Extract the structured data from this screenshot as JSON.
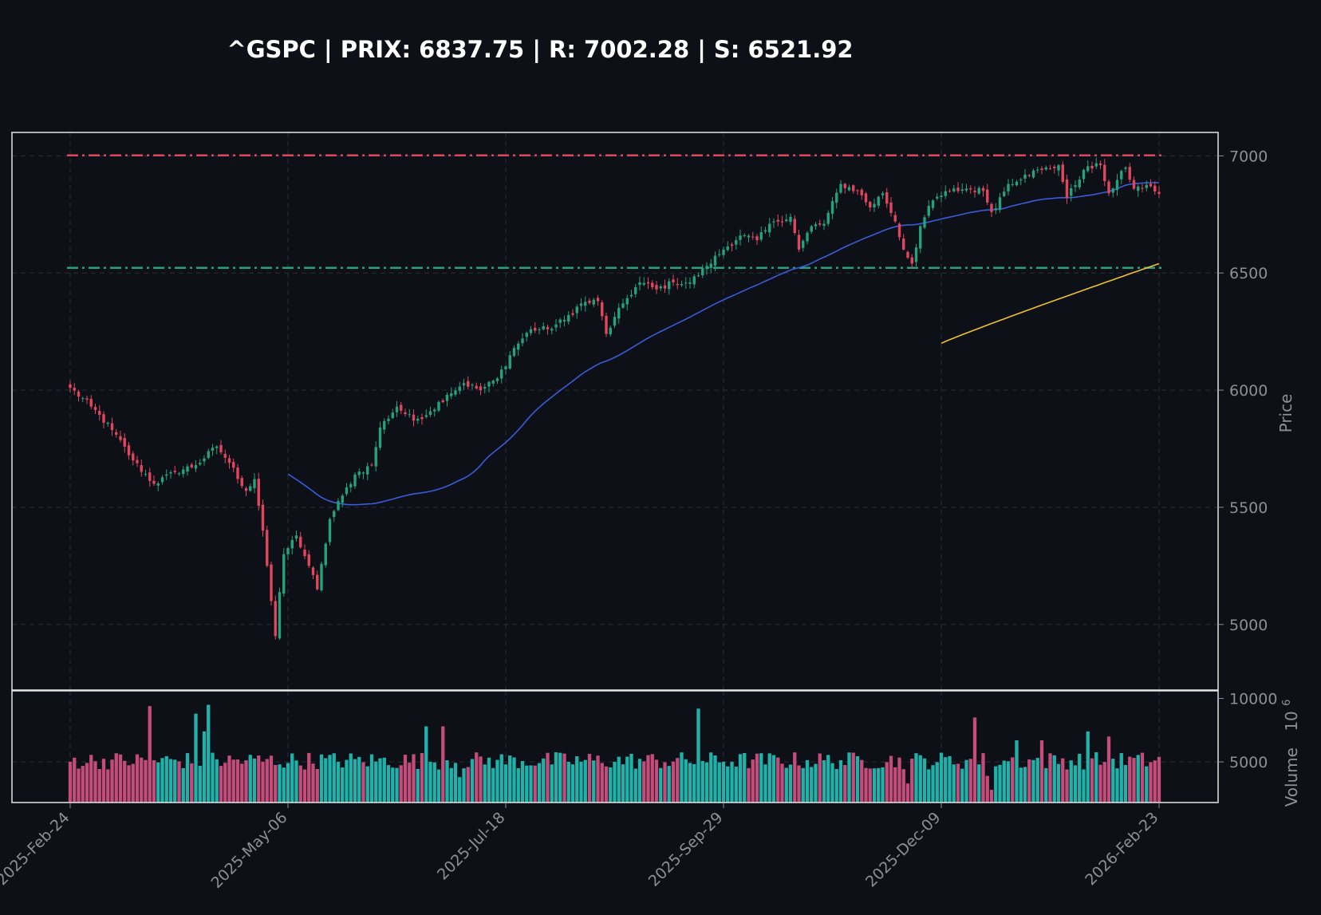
{
  "chart_data": {
    "type": "candlestick",
    "title": "^GSPC | PRIX: 6837.75 | R: 7002.28 | S: 6521.92",
    "ylabel": "Price",
    "volume_label": "Volume",
    "volume_exponent_base": "10",
    "volume_exponent": "6",
    "x_tick_labels": [
      "2025-Feb-24",
      "2025-May-06",
      "2025-Jul-18",
      "2025-Sep-29",
      "2025-Dec-09",
      "2026-Feb-23"
    ],
    "y_ticks": [
      5000,
      5500,
      6000,
      6500,
      7000
    ],
    "ylim": [
      4720,
      7100
    ],
    "volume_ticks": [
      5000,
      10000
    ],
    "volume_ylim": [
      1800,
      10600
    ],
    "price": 6837.75,
    "resistance": 7002.28,
    "support": 6521.92,
    "grid": true,
    "colors": {
      "background": "#0d1017",
      "up": "#26a17a",
      "down": "#e0465e",
      "resistance": "#e0465e",
      "support": "#26a17a",
      "ma_fast": "#3b5bdb",
      "ma_slow": "#f2c12e",
      "volume_up": "#20b2aa",
      "volume_down": "#c44c7a",
      "frame": "#e6e6e6",
      "grid": "#2a2e38",
      "text": "#8b8f99"
    },
    "anchors": [
      {
        "i": 0,
        "c": 6010
      },
      {
        "i": 5,
        "c": 5930
      },
      {
        "i": 10,
        "c": 5830
      },
      {
        "i": 15,
        "c": 5700
      },
      {
        "i": 20,
        "c": 5600
      },
      {
        "i": 25,
        "c": 5650
      },
      {
        "i": 30,
        "c": 5680
      },
      {
        "i": 35,
        "c": 5760
      },
      {
        "i": 38,
        "c": 5690
      },
      {
        "i": 42,
        "c": 5570
      },
      {
        "i": 44,
        "c": 5620
      },
      {
        "i": 46,
        "c": 5400
      },
      {
        "i": 48,
        "c": 5100
      },
      {
        "i": 49,
        "c": 4950
      },
      {
        "i": 51,
        "c": 5300
      },
      {
        "i": 54,
        "c": 5380
      },
      {
        "i": 57,
        "c": 5250
      },
      {
        "i": 59,
        "c": 5150
      },
      {
        "i": 62,
        "c": 5450
      },
      {
        "i": 65,
        "c": 5550
      },
      {
        "i": 68,
        "c": 5640
      },
      {
        "i": 72,
        "c": 5680
      },
      {
        "i": 74,
        "c": 5840
      },
      {
        "i": 78,
        "c": 5930
      },
      {
        "i": 82,
        "c": 5870
      },
      {
        "i": 86,
        "c": 5910
      },
      {
        "i": 90,
        "c": 5980
      },
      {
        "i": 94,
        "c": 6030
      },
      {
        "i": 98,
        "c": 6000
      },
      {
        "i": 102,
        "c": 6050
      },
      {
        "i": 106,
        "c": 6180
      },
      {
        "i": 110,
        "c": 6260
      },
      {
        "i": 114,
        "c": 6260
      },
      {
        "i": 118,
        "c": 6300
      },
      {
        "i": 122,
        "c": 6370
      },
      {
        "i": 126,
        "c": 6380
      },
      {
        "i": 128,
        "c": 6240
      },
      {
        "i": 132,
        "c": 6370
      },
      {
        "i": 136,
        "c": 6460
      },
      {
        "i": 140,
        "c": 6430
      },
      {
        "i": 144,
        "c": 6460
      },
      {
        "i": 148,
        "c": 6460
      },
      {
        "i": 152,
        "c": 6530
      },
      {
        "i": 156,
        "c": 6600
      },
      {
        "i": 160,
        "c": 6660
      },
      {
        "i": 164,
        "c": 6640
      },
      {
        "i": 168,
        "c": 6720
      },
      {
        "i": 172,
        "c": 6740
      },
      {
        "i": 174,
        "c": 6600
      },
      {
        "i": 177,
        "c": 6700
      },
      {
        "i": 180,
        "c": 6710
      },
      {
        "i": 184,
        "c": 6880
      },
      {
        "i": 188,
        "c": 6850
      },
      {
        "i": 191,
        "c": 6780
      },
      {
        "i": 194,
        "c": 6840
      },
      {
        "i": 197,
        "c": 6720
      },
      {
        "i": 199,
        "c": 6600
      },
      {
        "i": 201,
        "c": 6540
      },
      {
        "i": 203,
        "c": 6700
      },
      {
        "i": 206,
        "c": 6810
      },
      {
        "i": 210,
        "c": 6850
      },
      {
        "i": 214,
        "c": 6860
      },
      {
        "i": 218,
        "c": 6850
      },
      {
        "i": 220,
        "c": 6760
      },
      {
        "i": 224,
        "c": 6880
      },
      {
        "i": 228,
        "c": 6920
      },
      {
        "i": 232,
        "c": 6940
      },
      {
        "i": 236,
        "c": 6960
      },
      {
        "i": 238,
        "c": 6820
      },
      {
        "i": 242,
        "c": 6940
      },
      {
        "i": 246,
        "c": 6960
      },
      {
        "i": 248,
        "c": 6840
      },
      {
        "i": 252,
        "c": 6950
      },
      {
        "i": 254,
        "c": 6860
      },
      {
        "i": 258,
        "c": 6870
      },
      {
        "i": 260,
        "c": 6837.75
      }
    ],
    "volume_spikes": [
      {
        "i": 19,
        "v": 9400
      },
      {
        "i": 30,
        "v": 8800
      },
      {
        "i": 33,
        "v": 9500
      },
      {
        "i": 32,
        "v": 7400
      },
      {
        "i": 85,
        "v": 7800
      },
      {
        "i": 89,
        "v": 7800
      },
      {
        "i": 150,
        "v": 9200
      },
      {
        "i": 216,
        "v": 8500
      },
      {
        "i": 226,
        "v": 6700
      },
      {
        "i": 243,
        "v": 7400
      },
      {
        "i": 248,
        "v": 7000
      },
      {
        "i": 232,
        "v": 6700
      },
      {
        "i": 220,
        "v": 2800
      },
      {
        "i": 219,
        "v": 3900
      },
      {
        "i": 200,
        "v": 3300
      },
      {
        "i": 93,
        "v": 3800
      }
    ],
    "ma_fast_start": 52,
    "ma_slow_start": 208
  }
}
